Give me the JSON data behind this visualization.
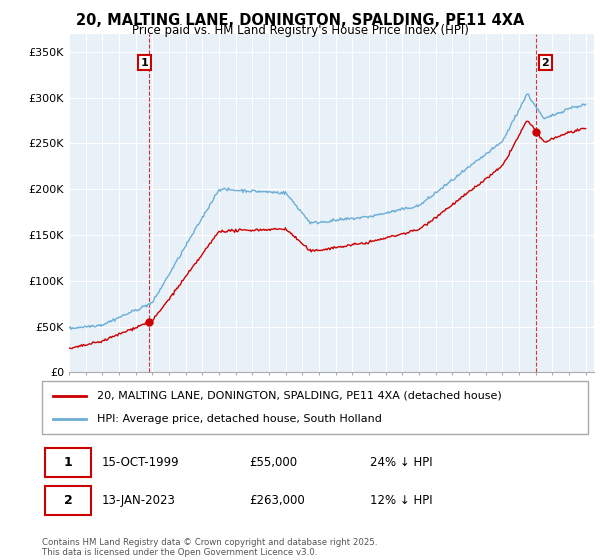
{
  "title_line1": "20, MALTING LANE, DONINGTON, SPALDING, PE11 4XA",
  "title_line2": "Price paid vs. HM Land Registry's House Price Index (HPI)",
  "ylim": [
    0,
    370000
  ],
  "yticks": [
    0,
    50000,
    100000,
    150000,
    200000,
    250000,
    300000,
    350000
  ],
  "ytick_labels": [
    "£0",
    "£50K",
    "£100K",
    "£150K",
    "£200K",
    "£250K",
    "£300K",
    "£350K"
  ],
  "hpi_color": "#6baed6",
  "price_color": "#cc0000",
  "sale1_date_x": 1999.79,
  "sale1_price": 55000,
  "sale2_date_x": 2023.04,
  "sale2_price": 263000,
  "legend_line1": "20, MALTING LANE, DONINGTON, SPALDING, PE11 4XA (detached house)",
  "legend_line2": "HPI: Average price, detached house, South Holland",
  "table_row1": [
    "1",
    "15-OCT-1999",
    "£55,000",
    "24% ↓ HPI"
  ],
  "table_row2": [
    "2",
    "13-JAN-2023",
    "£263,000",
    "12% ↓ HPI"
  ],
  "footnote": "Contains HM Land Registry data © Crown copyright and database right 2025.\nThis data is licensed under the Open Government Licence v3.0.",
  "bg_color": "#ffffff",
  "plot_bg_color": "#e8f0f8",
  "grid_color": "#ffffff",
  "xmin": 1995.0,
  "xmax": 2026.5
}
